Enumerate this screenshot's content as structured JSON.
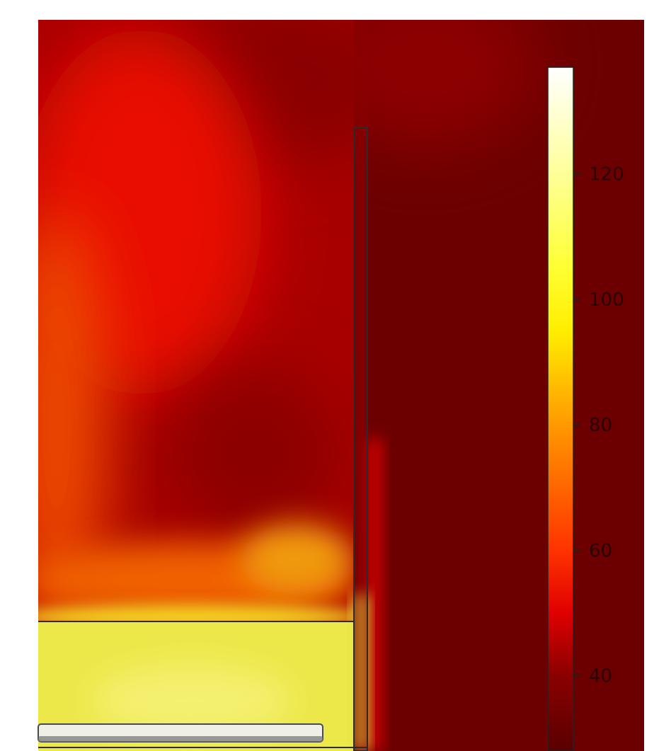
{
  "chart_data": {
    "type": "heatmap",
    "title": "",
    "xlabel": "",
    "ylabel": "",
    "colormap": "heat",
    "colorbar": {
      "ticks": [
        40,
        60,
        80,
        100,
        120
      ],
      "range": [
        28,
        137
      ],
      "stops": [
        {
          "v": 28,
          "color": "#5a0000"
        },
        {
          "v": 40,
          "color": "#8a0000"
        },
        {
          "v": 50,
          "color": "#e00000"
        },
        {
          "v": 60,
          "color": "#ff3300"
        },
        {
          "v": 80,
          "color": "#ff9900"
        },
        {
          "v": 95,
          "color": "#ffee00"
        },
        {
          "v": 105,
          "color": "#ffff33"
        },
        {
          "v": 120,
          "color": "#ffff99"
        },
        {
          "v": 137,
          "color": "#ffffff"
        }
      ]
    },
    "colors": {
      "field_dark": "#6e0000",
      "field_mid": "#a00000",
      "field_red": "#e81000",
      "field_orange": "#f05a00",
      "field_yellow": "#ecea48",
      "outline": "#2b2b2b",
      "heater": "#efefe8"
    }
  }
}
